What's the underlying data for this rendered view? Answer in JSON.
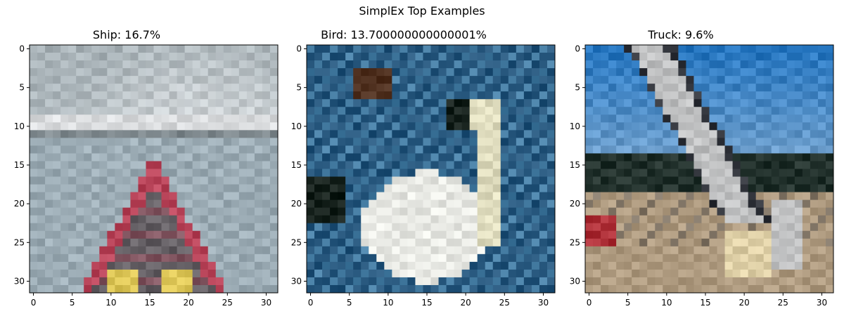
{
  "figure": {
    "suptitle": "SimplEx Top Examples"
  },
  "chart_data": [
    {
      "type": "heatmap",
      "title": "Ship: 16.7%",
      "image_size": [
        32,
        32
      ],
      "xlim": [
        -0.5,
        31.5
      ],
      "ylim": [
        31.5,
        -0.5
      ],
      "xticks": [
        0,
        5,
        10,
        15,
        20,
        25,
        30
      ],
      "yticks": [
        0,
        5,
        10,
        15,
        20,
        25,
        30
      ],
      "grid": false,
      "scene": "ship",
      "palette": {
        "sky": "#b3bdc2",
        "horizon": "#e4e6e8",
        "shore": "#8a9499",
        "sea": "#a6b6bf",
        "hull": "#c24e63",
        "deck": "#6f6a6f",
        "yellow": "#e6cf60"
      }
    },
    {
      "type": "heatmap",
      "title": "Bird: 13.700000000000001%",
      "image_size": [
        32,
        32
      ],
      "xlim": [
        -0.5,
        31.5
      ],
      "ylim": [
        31.5,
        -0.5
      ],
      "xticks": [
        0,
        5,
        10,
        15,
        20,
        25,
        30
      ],
      "yticks": [
        0,
        5,
        10,
        15,
        20,
        25,
        30
      ],
      "grid": false,
      "scene": "bird",
      "palette": {
        "water": "#2f5f85",
        "waterlight": "#4f86ac",
        "swan": "#f2f3ee",
        "neck": "#e9e6c8",
        "dark": "#1f2a25",
        "brown": "#5a3b2a"
      }
    },
    {
      "type": "heatmap",
      "title": "Truck: 9.6%",
      "image_size": [
        32,
        32
      ],
      "xlim": [
        -0.5,
        31.5
      ],
      "ylim": [
        31.5,
        -0.5
      ],
      "xticks": [
        0,
        5,
        10,
        15,
        20,
        25,
        30
      ],
      "yticks": [
        0,
        5,
        10,
        15,
        20,
        25,
        30
      ],
      "grid": false,
      "scene": "truck",
      "palette": {
        "sky": "#2f7fc9",
        "skylight": "#79a9d6",
        "trees": "#2c3b36",
        "ground": "#b8a489",
        "boom": "#c9cacb",
        "dark": "#3a3d44",
        "red": "#b83a42",
        "cream": "#e8d9b0"
      }
    }
  ]
}
